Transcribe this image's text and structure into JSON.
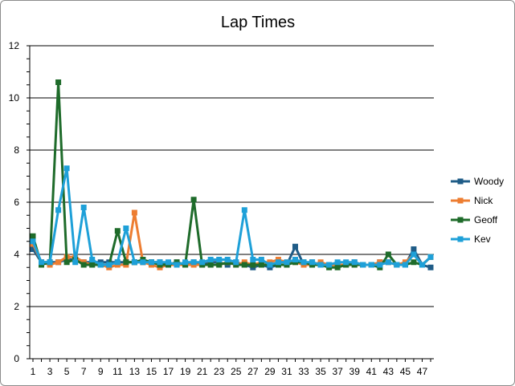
{
  "chart_data": {
    "type": "line",
    "title": "Lap Times",
    "xlabel": "",
    "ylabel": "",
    "ylim": [
      0,
      12
    ],
    "yticks": [
      0,
      2,
      4,
      6,
      8,
      10,
      12
    ],
    "x": [
      1,
      2,
      3,
      4,
      5,
      6,
      7,
      8,
      9,
      10,
      11,
      12,
      13,
      14,
      15,
      16,
      17,
      18,
      19,
      20,
      21,
      22,
      23,
      24,
      25,
      26,
      27,
      28,
      29,
      30,
      31,
      32,
      33,
      34,
      35,
      36,
      37,
      38,
      39,
      40,
      41,
      42,
      43,
      44,
      45,
      46,
      47,
      48
    ],
    "xtick_labels": [
      1,
      3,
      5,
      7,
      9,
      11,
      13,
      15,
      17,
      19,
      21,
      23,
      25,
      27,
      29,
      31,
      33,
      35,
      37,
      39,
      41,
      43,
      45,
      47
    ],
    "grid": "horizontal major gridlines",
    "legend_position": "right",
    "series": [
      {
        "name": "Woody",
        "color": "#1f5c87",
        "values": [
          4.2,
          3.7,
          3.7,
          3.7,
          3.8,
          3.8,
          3.7,
          3.7,
          3.7,
          3.7,
          3.7,
          3.7,
          3.7,
          3.7,
          3.7,
          3.7,
          3.6,
          3.7,
          3.6,
          3.7,
          3.6,
          3.7,
          3.7,
          3.6,
          3.7,
          3.6,
          3.5,
          3.6,
          3.5,
          3.6,
          3.6,
          4.3,
          3.6,
          3.7,
          3.6,
          3.6,
          3.6,
          3.6,
          3.7,
          3.6,
          3.6,
          3.7,
          3.7,
          3.6,
          3.6,
          4.2,
          3.6,
          3.5
        ]
      },
      {
        "name": "Nick",
        "color": "#ed7d31",
        "values": [
          4.4,
          3.7,
          3.6,
          3.7,
          3.9,
          3.9,
          3.7,
          3.6,
          3.6,
          3.5,
          3.6,
          3.6,
          5.6,
          3.7,
          3.6,
          3.5,
          3.6,
          3.6,
          3.6,
          3.6,
          3.6,
          3.6,
          3.6,
          3.7,
          3.6,
          3.7,
          3.6,
          3.7,
          3.7,
          3.8,
          3.7,
          3.7,
          3.6,
          3.6,
          3.7,
          3.6,
          3.6,
          3.6,
          3.6,
          3.6,
          3.6,
          3.7,
          3.7,
          3.6,
          3.7,
          4.0,
          3.6,
          3.9
        ]
      },
      {
        "name": "Geoff",
        "color": "#1e6b2a",
        "values": [
          4.7,
          3.6,
          3.7,
          10.6,
          3.7,
          3.8,
          3.6,
          3.6,
          3.6,
          3.6,
          4.9,
          3.7,
          3.7,
          3.8,
          3.7,
          3.6,
          3.6,
          3.7,
          3.6,
          6.1,
          3.6,
          3.6,
          3.6,
          3.7,
          3.6,
          3.6,
          3.6,
          3.6,
          3.6,
          3.6,
          3.6,
          3.7,
          3.7,
          3.6,
          3.6,
          3.5,
          3.5,
          3.6,
          3.6,
          3.6,
          3.6,
          3.5,
          4.0,
          3.6,
          3.6,
          3.7,
          3.6,
          3.9
        ]
      },
      {
        "name": "Kev",
        "color": "#1ea0d8",
        "values": [
          4.5,
          3.7,
          3.7,
          5.7,
          7.3,
          3.7,
          5.8,
          3.8,
          3.6,
          3.6,
          3.7,
          5.0,
          3.7,
          3.7,
          3.7,
          3.7,
          3.7,
          3.6,
          3.7,
          3.7,
          3.7,
          3.8,
          3.8,
          3.8,
          3.7,
          5.7,
          3.8,
          3.8,
          3.6,
          3.7,
          3.7,
          3.8,
          3.7,
          3.7,
          3.6,
          3.6,
          3.7,
          3.7,
          3.7,
          3.6,
          3.6,
          3.6,
          3.7,
          3.6,
          3.6,
          4.0,
          3.6,
          3.9
        ]
      }
    ]
  }
}
